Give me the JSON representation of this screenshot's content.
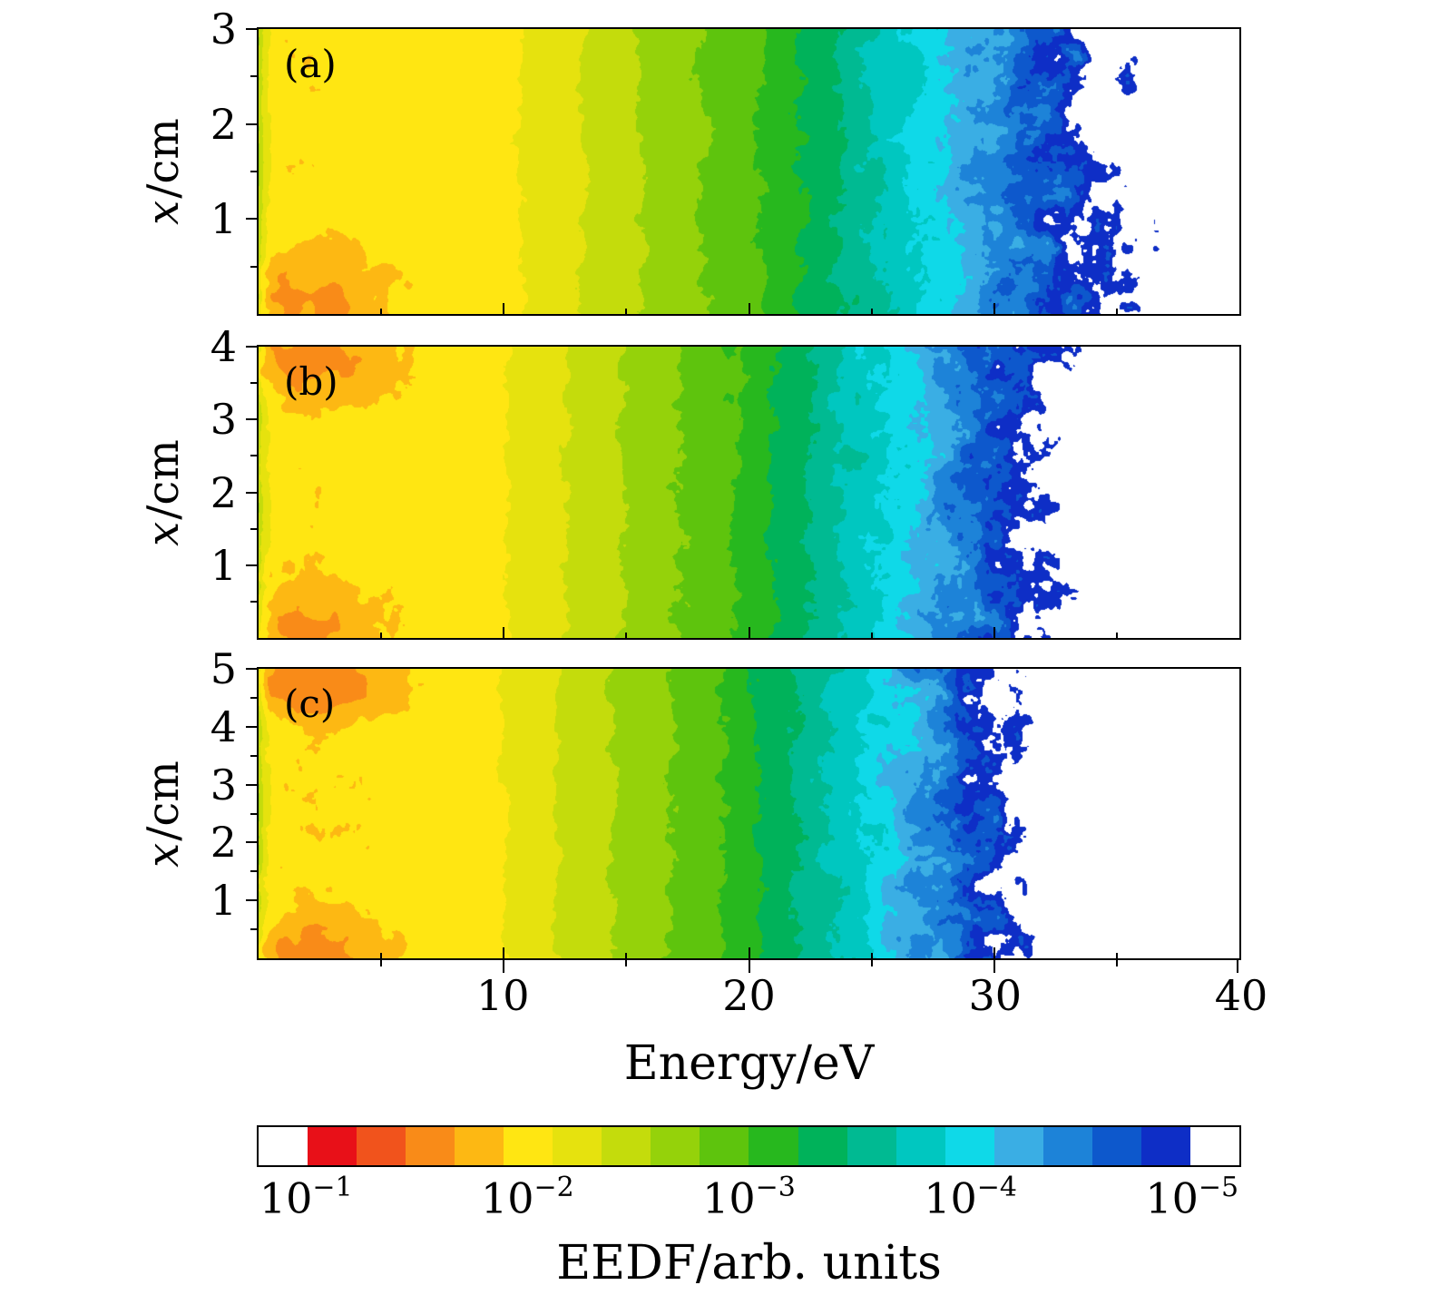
{
  "figure": {
    "ylabel_var": "x",
    "ylabel_unit": "/cm",
    "xlabel": "Energy/eV",
    "colorbar_label": "EEDF/arb. units"
  },
  "chart_data": {
    "type": "heatmap",
    "title": "",
    "x_axis": {
      "label": "Energy/eV",
      "range_eV": [
        0,
        40
      ],
      "major_ticks": [
        10,
        20,
        30,
        40
      ],
      "minor_ticks": [
        5,
        15,
        25,
        35
      ]
    },
    "y_axis": {
      "label": "x/cm"
    },
    "value_axis": {
      "label": "EEDF/arb. units",
      "scale": "log10",
      "range": [
        0.1,
        1e-05
      ]
    },
    "panels": [
      {
        "label": "(a)",
        "y_range_cm": [
          0,
          3
        ],
        "y_major_ticks": [
          1,
          2,
          3
        ],
        "plateau_log10": -1.95,
        "decade_crossings_eV": {
          "-2": 9.5,
          "-3": 20.5,
          "-4": 27.5,
          "-5": 34
        },
        "hot_spots": [
          {
            "x_cm": 0.1,
            "energy_eV": 1.5,
            "log10_boost": 0.34
          }
        ],
        "edge_scatter": 0.1
      },
      {
        "label": "(b)",
        "y_range_cm": [
          0,
          4
        ],
        "y_major_ticks": [
          1,
          2,
          3,
          4
        ],
        "plateau_log10": -1.95,
        "decade_crossings_eV": {
          "-2": 9,
          "-3": 19.5,
          "-4": 26,
          "-5": 31.5
        },
        "hot_spots": [
          {
            "x_cm": 3.9,
            "energy_eV": 1.6,
            "log10_boost": 0.5
          },
          {
            "x_cm": 0.1,
            "energy_eV": 1.5,
            "log10_boost": 0.32
          }
        ],
        "edge_scatter": 0.15
      },
      {
        "label": "(c)",
        "y_range_cm": [
          0,
          5
        ],
        "y_major_ticks": [
          1,
          2,
          3,
          4,
          5
        ],
        "plateau_log10": -1.95,
        "decade_crossings_eV": {
          "-2": 8.8,
          "-3": 19,
          "-4": 25.3,
          "-5": 30.5
        },
        "hot_spots": [
          {
            "x_cm": 4.8,
            "energy_eV": 2.0,
            "log10_boost": 0.5
          },
          {
            "x_cm": 0.15,
            "energy_eV": 1.5,
            "log10_boost": 0.42
          }
        ],
        "edge_scatter": 0.22
      }
    ],
    "colorbar": {
      "tick_exponents": [
        "−1",
        "−2",
        "−3",
        "−4",
        "−5"
      ],
      "tick_positions_pct": [
        5,
        27.5,
        50,
        72.5,
        95
      ],
      "under_over_color": "#ffffff",
      "palette": [
        "#e81018",
        "#f1531c",
        "#f98b18",
        "#fdb813",
        "#ffe612",
        "#e6e20e",
        "#c4dc0c",
        "#95d20a",
        "#5ec40d",
        "#27b81e",
        "#00b25a",
        "#00ba92",
        "#00c7c0",
        "#0fd9e8",
        "#3aaee4",
        "#1d83d8",
        "#0d58cc",
        "#0e2ec6"
      ]
    }
  }
}
